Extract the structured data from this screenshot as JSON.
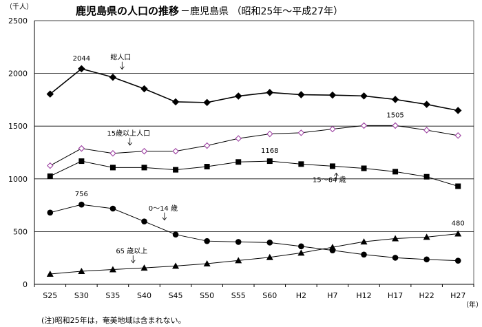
{
  "chart_data": {
    "type": "line",
    "title": "鹿児島県の人口の推移",
    "subtitle": "－鹿児島県 （昭和25年～平成27年）",
    "ylabel": "（千人）",
    "xlabel": "（年）",
    "ylim": [
      0,
      2500
    ],
    "yticks": [
      0,
      500,
      1000,
      1500,
      2000,
      2500
    ],
    "grid": true,
    "categories": [
      "S25",
      "S30",
      "S35",
      "S40",
      "S45",
      "S50",
      "S55",
      "S60",
      "H2",
      "H7",
      "H12",
      "H17",
      "H22",
      "H27"
    ],
    "series": [
      {
        "name": "総人口",
        "marker": "diamond-filled",
        "values": [
          1804,
          2044,
          1963,
          1854,
          1730,
          1724,
          1785,
          1819,
          1798,
          1794,
          1786,
          1753,
          1706,
          1648
        ]
      },
      {
        "name": "15歳以上人口",
        "marker": "diamond-open",
        "values": [
          1125,
          1288,
          1242,
          1262,
          1262,
          1315,
          1383,
          1426,
          1437,
          1472,
          1505,
          1505,
          1462,
          1411
        ]
      },
      {
        "name": "15～64 歳",
        "marker": "square",
        "values": [
          1025,
          1168,
          1107,
          1107,
          1086,
          1116,
          1160,
          1168,
          1140,
          1120,
          1100,
          1068,
          1020,
          930
        ]
      },
      {
        "name": "0～14 歳",
        "marker": "circle",
        "values": [
          680,
          756,
          718,
          596,
          472,
          410,
          402,
          396,
          360,
          322,
          282,
          252,
          236,
          224
        ]
      },
      {
        "name": "65 歳以上",
        "marker": "triangle",
        "values": [
          98,
          124,
          140,
          156,
          174,
          196,
          226,
          256,
          298,
          352,
          404,
          434,
          448,
          480
        ]
      }
    ],
    "annotations": [
      {
        "text": "2044",
        "series": 0,
        "index": 1
      },
      {
        "text": "1505",
        "series": 1,
        "index": 11
      },
      {
        "text": "1168",
        "series": 2,
        "index": 7
      },
      {
        "text": "756",
        "series": 3,
        "index": 1
      },
      {
        "text": "480",
        "series": 4,
        "index": 13
      }
    ],
    "series_labels": [
      {
        "text": "総人口",
        "series": 0
      },
      {
        "text": "15歳以上人口",
        "series": 1
      },
      {
        "text": "15～64 歳",
        "series": 2
      },
      {
        "text": "0～14 歳",
        "series": 3
      },
      {
        "text": "65 歳以上",
        "series": 4
      }
    ],
    "note": "(注)昭和25年は，奄美地域は含まれない。"
  }
}
